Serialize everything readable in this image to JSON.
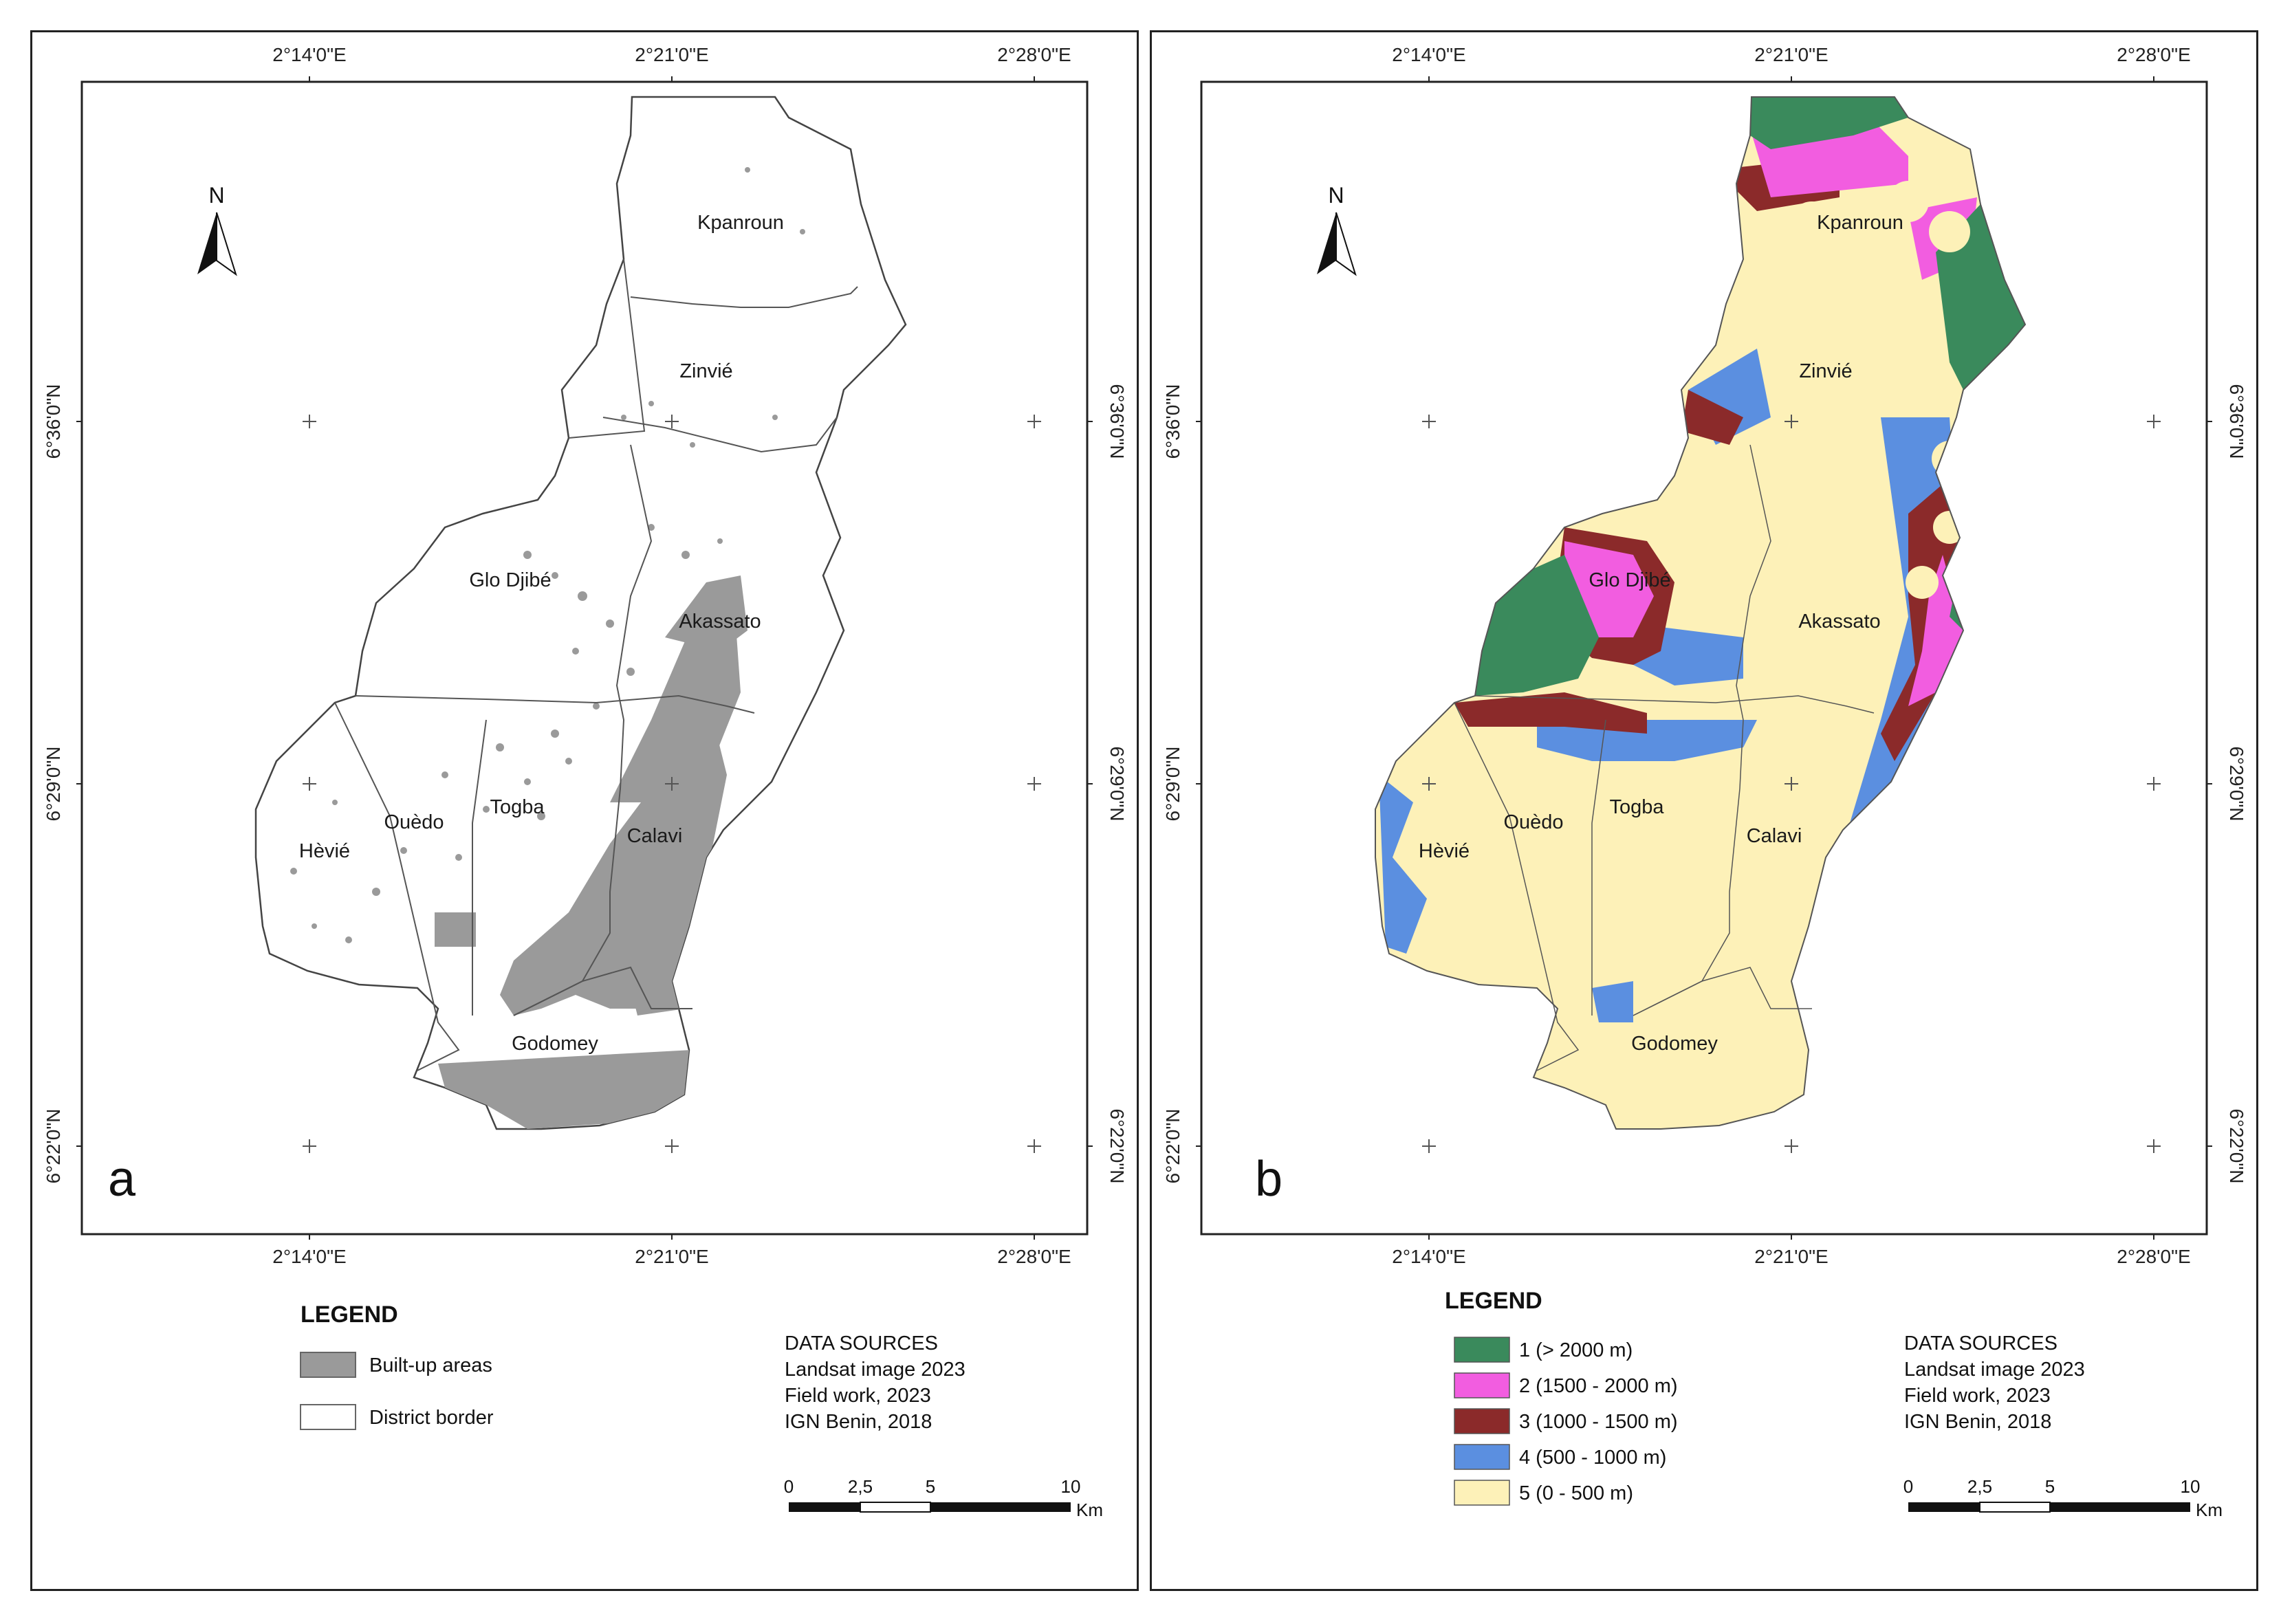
{
  "coords": {
    "top_lon": [
      "2°14'0\"E",
      "2°21'0\"E",
      "2°28'0\"E"
    ],
    "bottom_lon": [
      "2°14'0\"E",
      "2°21'0\"E",
      "2°28'0\"E"
    ],
    "lat": [
      "6°36'0\"N",
      "6°29'0\"N",
      "6°22'0\"N"
    ]
  },
  "districts": [
    "Kpanroun",
    "Zinvié",
    "Glo Djibé",
    "Akassato",
    "Ouèdo",
    "Togba",
    "Calavi",
    "Hèvié",
    "Godomey"
  ],
  "north_label": "N",
  "panel_a": {
    "letter": "a",
    "legend_title": "LEGEND",
    "legend_items": [
      {
        "label": "Built-up areas",
        "color": "#9a9a9a"
      },
      {
        "label": "District border",
        "color": "#ffffff"
      }
    ]
  },
  "panel_b": {
    "letter": "b",
    "legend_title": "LEGEND",
    "legend_items": [
      {
        "label": "1 (> 2000 m)",
        "color": "#3a8a5c"
      },
      {
        "label": "2 (1500 - 2000 m)",
        "color": "#f25de0"
      },
      {
        "label": "3 (1000 - 1500 m)",
        "color": "#8b2a2a"
      },
      {
        "label": "4 (500 - 1000 m)",
        "color": "#5b8fe0"
      },
      {
        "label": "5 (0 - 500 m)",
        "color": "#fdf1b8"
      }
    ]
  },
  "data_sources": {
    "title": "DATA SOURCES",
    "lines": [
      "Landsat image 2023",
      "Field work, 2023",
      "IGN Benin, 2018"
    ]
  },
  "scale_bar": {
    "ticks": [
      "0",
      "2,5",
      "5",
      "10"
    ],
    "unit": "Km"
  }
}
